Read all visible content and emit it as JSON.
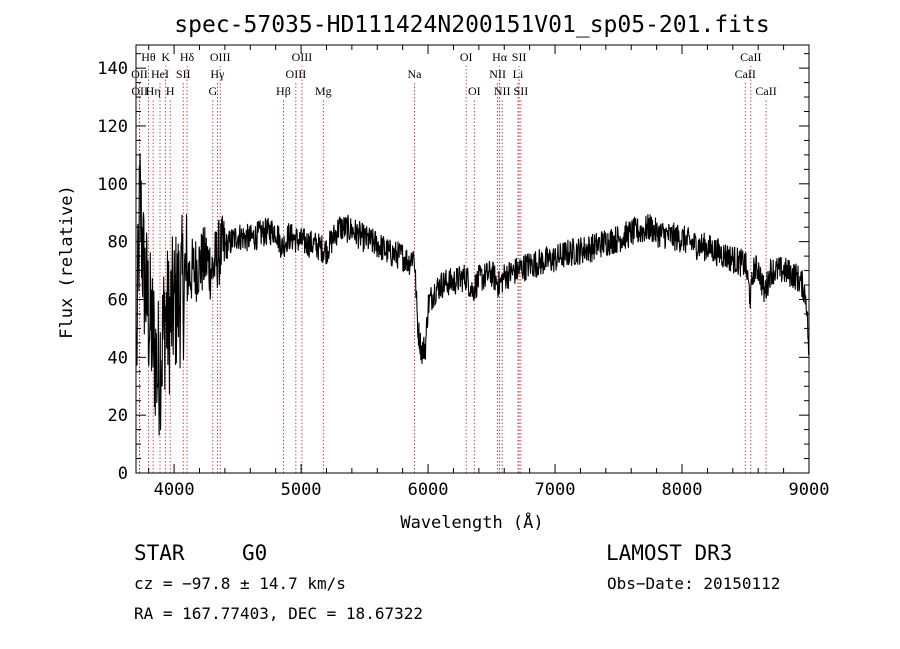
{
  "chart_data": {
    "type": "line",
    "title": "spec-57035-HD111424N200151V01_sp05-201.fits",
    "xlabel": "Wavelength (Å)",
    "ylabel": "Flux (relative)",
    "xlim": [
      3700,
      9000
    ],
    "ylim": [
      0,
      148
    ],
    "xticks": [
      "4000",
      "5000",
      "6000",
      "7000",
      "8000",
      "9000"
    ],
    "yticks": [
      "0",
      "20",
      "40",
      "60",
      "80",
      "100",
      "120",
      "140"
    ],
    "continuum": [
      [
        3700,
        30
      ],
      [
        3730,
        95
      ],
      [
        3760,
        70
      ],
      [
        3800,
        55
      ],
      [
        3840,
        45
      ],
      [
        3870,
        35
      ],
      [
        3900,
        42
      ],
      [
        3930,
        55
      ],
      [
        3960,
        52
      ],
      [
        4000,
        58
      ],
      [
        4050,
        62
      ],
      [
        4100,
        68
      ],
      [
        4150,
        70
      ],
      [
        4200,
        72
      ],
      [
        4250,
        74
      ],
      [
        4300,
        70
      ],
      [
        4350,
        76
      ],
      [
        4400,
        78
      ],
      [
        4450,
        80
      ],
      [
        4500,
        82
      ],
      [
        4600,
        81
      ],
      [
        4700,
        83
      ],
      [
        4800,
        84
      ],
      [
        4850,
        78
      ],
      [
        4900,
        82
      ],
      [
        5000,
        80
      ],
      [
        5100,
        79
      ],
      [
        5200,
        77
      ],
      [
        5300,
        85
      ],
      [
        5400,
        84
      ],
      [
        5500,
        81
      ],
      [
        5600,
        79
      ],
      [
        5700,
        76
      ],
      [
        5800,
        75
      ],
      [
        5850,
        73
      ],
      [
        5890,
        76
      ],
      [
        5920,
        50
      ],
      [
        5950,
        42
      ],
      [
        5980,
        44
      ],
      [
        6000,
        58
      ],
      [
        6050,
        63
      ],
      [
        6100,
        65
      ],
      [
        6150,
        66
      ],
      [
        6200,
        66
      ],
      [
        6300,
        68
      ],
      [
        6350,
        63
      ],
      [
        6400,
        67
      ],
      [
        6500,
        69
      ],
      [
        6560,
        65
      ],
      [
        6600,
        68
      ],
      [
        6700,
        70
      ],
      [
        6800,
        72
      ],
      [
        6900,
        73
      ],
      [
        7000,
        74
      ],
      [
        7100,
        76
      ],
      [
        7200,
        77
      ],
      [
        7300,
        78
      ],
      [
        7400,
        80
      ],
      [
        7500,
        81
      ],
      [
        7600,
        83
      ],
      [
        7700,
        84
      ],
      [
        7750,
        85
      ],
      [
        7800,
        83
      ],
      [
        7900,
        82
      ],
      [
        8000,
        81
      ],
      [
        8100,
        79
      ],
      [
        8200,
        78
      ],
      [
        8300,
        76
      ],
      [
        8400,
        74
      ],
      [
        8500,
        72
      ],
      [
        8540,
        60
      ],
      [
        8560,
        70
      ],
      [
        8600,
        71
      ],
      [
        8650,
        62
      ],
      [
        8700,
        70
      ],
      [
        8800,
        70
      ],
      [
        8900,
        68
      ],
      [
        8950,
        65
      ],
      [
        8980,
        60
      ],
      [
        9000,
        40
      ]
    ],
    "lines": [
      {
        "name": "Hθ",
        "wave": 3798,
        "row": 0
      },
      {
        "name": "OII",
        "wave": 3727,
        "row": 1
      },
      {
        "name": "OII",
        "wave": 3729,
        "row": 2
      },
      {
        "name": "HeI",
        "wave": 3889,
        "row": 1
      },
      {
        "name": "Hη",
        "wave": 3835,
        "row": 2
      },
      {
        "name": "K",
        "wave": 3934,
        "row": 0
      },
      {
        "name": "H",
        "wave": 3969,
        "row": 2
      },
      {
        "name": "SII",
        "wave": 4072,
        "row": 1
      },
      {
        "name": "Hδ",
        "wave": 4102,
        "row": 0
      },
      {
        "name": "OIII",
        "wave": 4363,
        "row": 0
      },
      {
        "name": "Hγ",
        "wave": 4341,
        "row": 1
      },
      {
        "name": "G",
        "wave": 4305,
        "row": 2
      },
      {
        "name": "Hβ",
        "wave": 4861,
        "row": 2
      },
      {
        "name": "OIII",
        "wave": 5007,
        "row": 0
      },
      {
        "name": "OIII",
        "wave": 4959,
        "row": 1
      },
      {
        "name": "Mg",
        "wave": 5175,
        "row": 2
      },
      {
        "name": "Na",
        "wave": 5893,
        "row": 1
      },
      {
        "name": "OI",
        "wave": 6300,
        "row": 0
      },
      {
        "name": "OI",
        "wave": 6364,
        "row": 2
      },
      {
        "name": "Hα",
        "wave": 6563,
        "row": 0
      },
      {
        "name": "NII",
        "wave": 6548,
        "row": 1
      },
      {
        "name": "NII",
        "wave": 6584,
        "row": 2
      },
      {
        "name": "SII",
        "wave": 6717,
        "row": 0
      },
      {
        "name": "Li",
        "wave": 6708,
        "row": 1
      },
      {
        "name": "SII",
        "wave": 6731,
        "row": 2
      },
      {
        "name": "CaII",
        "wave": 8542,
        "row": 0
      },
      {
        "name": "CaII",
        "wave": 8498,
        "row": 1
      },
      {
        "name": "CaII",
        "wave": 8662,
        "row": 2
      }
    ]
  },
  "info": {
    "object_class": "STAR",
    "subclass": "G0",
    "survey": "LAMOST DR3",
    "cz": "cz = −97.8 ± 14.7 km/s",
    "obs_date": "Obs−Date: 20150112",
    "radec": "RA = 167.77403, DEC =  18.67322"
  }
}
